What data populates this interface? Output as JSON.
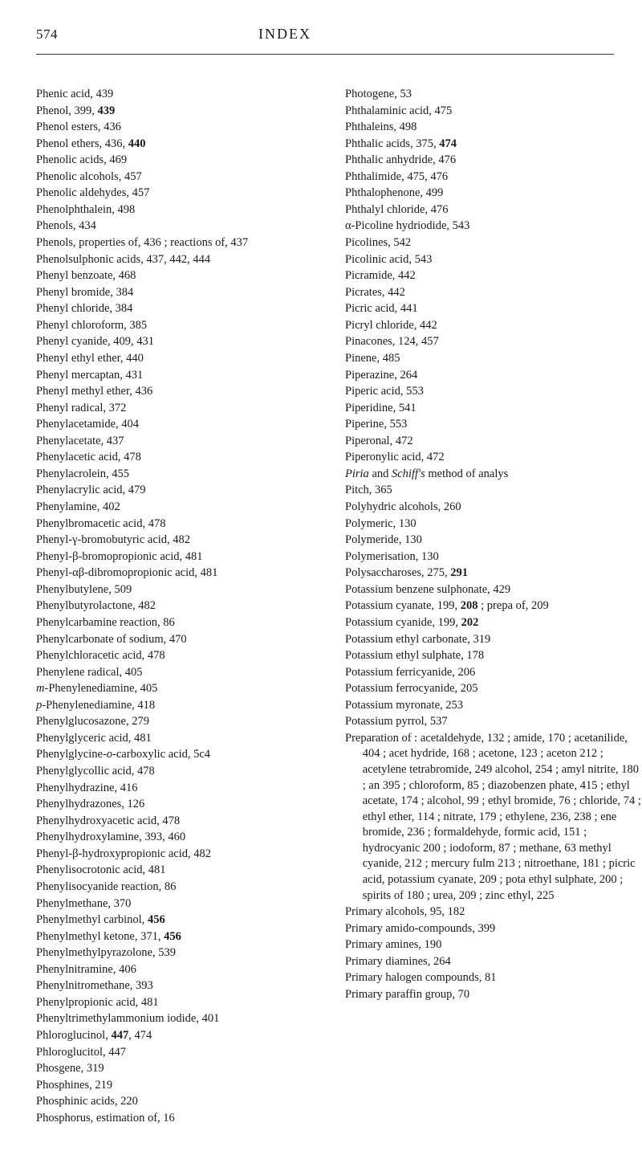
{
  "page_number": "574",
  "header_title": "INDEX",
  "left_column": [
    "Phenic acid, 439",
    "Phenol, 399, <b>439</b>",
    "Phenol esters, 436",
    "Phenol ethers, 436, <b>440</b>",
    "Phenolic acids, 469",
    "Phenolic alcohols, 457",
    "Phenolic aldehydes, 457",
    "Phenolphthalein, 498",
    "Phenols, 434",
    "Phenols, properties of, 436 ; reactions of, 437",
    "Phenolsulphonic acids, 437, 442, 444",
    "Phenyl benzoate, 468",
    "Phenyl bromide, 384",
    "Phenyl chloride, 384",
    "Phenyl chloroform, 385",
    "Phenyl cyanide, 409, 431",
    "Phenyl ethyl ether, 440",
    "Phenyl mercaptan, 431",
    "Phenyl methyl ether, 436",
    "Phenyl radical, 372",
    "Phenylacetamide, 404",
    "Phenylacetate, 437",
    "Phenylacetic acid, 478",
    "Phenylacrolein, 455",
    "Phenylacrylic acid, 479",
    "Phenylamine, 402",
    "Phenylbromacetic acid, 478",
    "Phenyl-γ-bromobutyric acid, 482",
    "Phenyl-β-bromopropionic acid, 481",
    "Phenyl-αβ-dibromopropionic acid, 481",
    "Phenylbutylene, 509",
    "Phenylbutyrolactone, 482",
    "Phenylcarbamine reaction, 86",
    "Phenylcarbonate of sodium, 470",
    "Phenylchloracetic acid, 478",
    "Phenylene radical, 405",
    "<i>m</i>-Phenylenediamine, 405",
    "<i>p</i>-Phenylenediamine, 418",
    "Phenylglucosazone, 279",
    "Phenylglyceric acid, 481",
    "Phenylglycine-<i>o</i>-carboxylic acid, 5c4",
    "Phenylglycollic acid, 478",
    "Phenylhydrazine, 416",
    "Phenylhydrazones, 126",
    "Phenylhydroxyacetic acid, 478",
    "Phenylhydroxylamine, 393, 460",
    "Phenyl-β-hydroxypropionic acid, 482",
    "Phenylisocrotonic acid, 481",
    "Phenylisocyanide reaction, 86",
    "Phenylmethane, 370",
    "Phenylmethyl carbinol, <b>456</b>",
    "Phenylmethyl ketone, 371, <b>456</b>",
    "Phenylmethylpyrazolone, 539",
    "Phenylnitramine, 406",
    "Phenylnitromethane, 393",
    "Phenylpropionic acid, 481",
    "Phenyltrimethylammonium iodide, 401",
    "Phloroglucinol, <b>447</b>, 474",
    "Phloroglucitol, 447",
    "Phosgene, 319",
    "Phosphines, 219",
    "Phosphinic acids, 220",
    "Phosphorus, estimation of, 16"
  ],
  "right_column": [
    "Photogene, 53",
    "Phthalaminic acid, 475",
    "Phthaleins, 498",
    "Phthalic acids, 375, <b>474</b>",
    "Phthalic anhydride, 476",
    "Phthalimide, 475, 476",
    "Phthalophenone, 499",
    "Phthalyl chloride, 476",
    "α-Picoline hydriodide, 543",
    "Picolines, 542",
    "Picolinic acid, 543",
    "Picramide, 442",
    "Picrates, 442",
    "Picric acid, 441",
    "Picryl chloride, 442",
    "Pinacones, 124, 457",
    "Pinene, 485",
    "Piperazine, 264",
    "Piperic acid, 553",
    "Piperidine, 541",
    "Piperine, 553",
    "Piperonal, 472",
    "Piperonylic acid, 472",
    "<i>Piria</i> and <i>Schiff's</i> method of analys",
    "Pitch, 365",
    "Polyhydric alcohols, 260",
    "Polymeric, 130",
    "Polymeride, 130",
    "Polymerisation, 130",
    "Polysaccharoses, 275, <b>291</b>",
    "Potassium benzene sulphonate, 429",
    "Potassium cyanate, 199, <b>208</b> ; prepa of, 209",
    "Potassium cyanide, 199, <b>202</b>",
    "Potassium ethyl carbonate, 319",
    "Potassium ethyl sulphate, 178",
    "Potassium ferricyanide, 206",
    "Potassium ferrocyanide, 205",
    "Potassium myronate, 253",
    "Potassium pyrrol, 537",
    "Preparation of : acetaldehyde, 132 ; amide, 170 ; acetanilide, 404 ; acet hydride, 168 ; acetone, 123 ; aceton 212 ; acetylene tetrabromide, 249 alcohol, 254 ; amyl nitrite, 180 ; an 395 ; chloroform, 85 ; diazobenzen phate, 415 ; ethyl acetate, 174 ; alcohol, 99 ; ethyl bromide, 76 ; chloride, 74 ; ethyl ether, 114 ; nitrate, 179 ; ethylene, 236, 238 ; ene bromide, 236 ; formaldehyde, formic acid, 151 ; hydrocyanic 200 ; iodoform, 87 ; methane, 63 methyl cyanide, 212 ; mercury fulm 213 ; nitroethane, 181 ; picric acid, potassium cyanate, 209 ; pota ethyl sulphate, 200 ; spirits of 180 ; urea, 209 ; zinc ethyl, 225",
    "Primary alcohols, 95, 182",
    "Primary amido-compounds, 399",
    "Primary amines, 190",
    "Primary diamines, 264",
    "Primary halogen compounds, 81",
    "Primary paraffin group, 70"
  ]
}
